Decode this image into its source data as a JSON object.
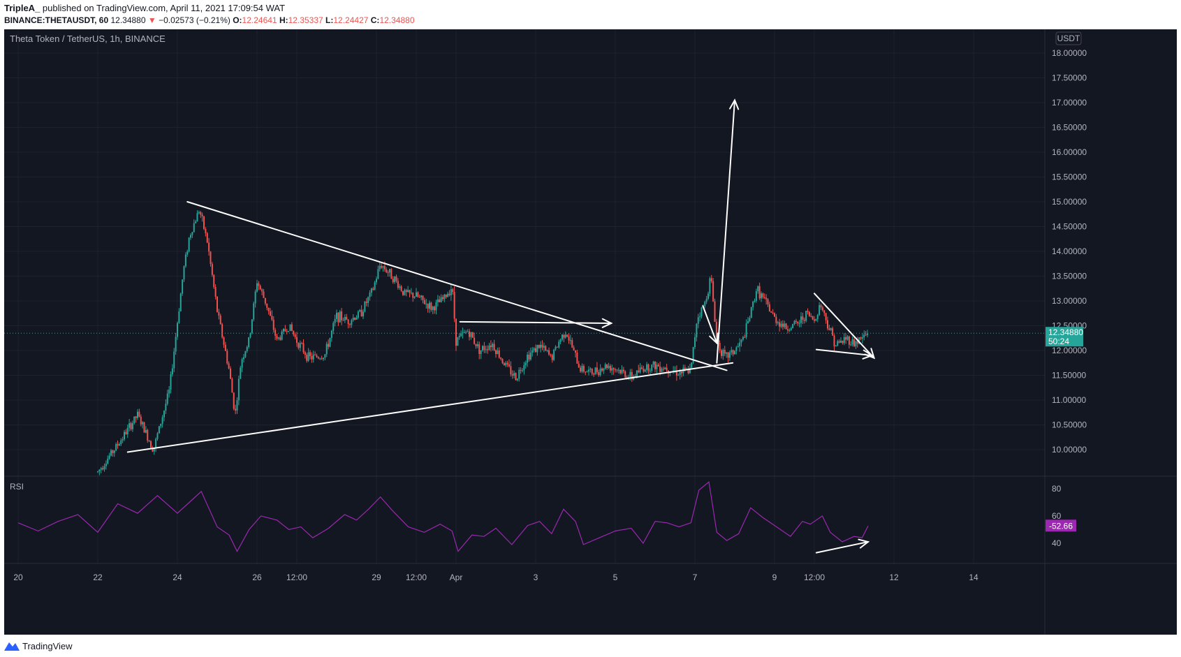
{
  "header": {
    "author": "TripleA_",
    "published": "published on TradingView.com, April 11, 2021 17:09:54 WAT",
    "symbol": "BINANCE:THETAUSDT, 60",
    "last": "12.34880",
    "change": "−0.02573 (−0.21%)",
    "o_label": "O:",
    "o_value": "12.24641",
    "h_label": "H:",
    "h_value": "12.35337",
    "l_label": "L:",
    "l_value": "12.24427",
    "c_label": "C:",
    "c_value": "12.34880"
  },
  "chart_title": "Theta Token / TetherUS, 1h, BINANCE",
  "currency_button": "USDT",
  "footer": {
    "brand": "TradingView"
  },
  "colors": {
    "background": "#131722",
    "up": "#26a69a",
    "down": "#ef5350",
    "rsi": "#9c27b0",
    "drawings": "#ffffff",
    "price_tag": "#26a69a"
  },
  "chart_data": {
    "type": "candlestick",
    "interval": "1h",
    "y_axis": {
      "min": 9.5,
      "max": 18.1,
      "ticks": [
        "18.00000",
        "17.50000",
        "17.00000",
        "16.50000",
        "16.00000",
        "15.50000",
        "15.00000",
        "14.50000",
        "14.00000",
        "13.50000",
        "13.00000",
        "12.50000",
        "12.00000",
        "11.50000",
        "11.00000",
        "10.50000",
        "10.00000"
      ]
    },
    "x_axis": {
      "ticks": [
        "20",
        "22",
        "24",
        "26",
        "12:00",
        "29",
        "12:00",
        "Apr",
        "3",
        "5",
        "7",
        "9",
        "12:00",
        "12",
        "14"
      ]
    },
    "last_price": "12.34880",
    "countdown": "50:24",
    "price_path": [
      [
        22.0,
        9.55
      ],
      [
        22.5,
        10.1
      ],
      [
        23.0,
        10.7
      ],
      [
        23.4,
        10.0
      ],
      [
        23.8,
        11.2
      ],
      [
        24.15,
        13.6
      ],
      [
        24.3,
        14.3
      ],
      [
        24.55,
        14.85
      ],
      [
        24.75,
        14.2
      ],
      [
        25.0,
        12.8
      ],
      [
        25.3,
        11.6
      ],
      [
        25.45,
        10.7
      ],
      [
        25.6,
        11.8
      ],
      [
        25.8,
        12.2
      ],
      [
        26.0,
        13.4
      ],
      [
        26.25,
        12.9
      ],
      [
        26.5,
        12.2
      ],
      [
        26.8,
        12.5
      ],
      [
        27.0,
        12.2
      ],
      [
        27.3,
        11.85
      ],
      [
        27.7,
        11.9
      ],
      [
        28.0,
        12.7
      ],
      [
        28.3,
        12.6
      ],
      [
        28.6,
        12.75
      ],
      [
        28.9,
        13.2
      ],
      [
        29.1,
        13.75
      ],
      [
        29.4,
        13.5
      ],
      [
        29.7,
        13.15
      ],
      [
        30.0,
        13.1
      ],
      [
        30.4,
        12.85
      ],
      [
        30.7,
        13.05
      ],
      [
        30.9,
        13.3
      ],
      [
        31.0,
        12.2
      ],
      [
        31.3,
        12.4
      ],
      [
        31.6,
        12.0
      ],
      [
        31.9,
        12.15
      ],
      [
        32.2,
        11.75
      ],
      [
        32.5,
        11.45
      ],
      [
        32.8,
        11.9
      ],
      [
        33.1,
        12.1
      ],
      [
        33.4,
        11.85
      ],
      [
        33.6,
        12.2
      ],
      [
        33.75,
        12.4
      ],
      [
        33.9,
        12.1
      ],
      [
        34.1,
        11.65
      ],
      [
        34.4,
        11.55
      ],
      [
        34.8,
        11.7
      ],
      [
        35.1,
        11.6
      ],
      [
        35.4,
        11.45
      ],
      [
        35.7,
        11.65
      ],
      [
        36.0,
        11.7
      ],
      [
        36.3,
        11.65
      ],
      [
        36.6,
        11.55
      ],
      [
        36.9,
        11.6
      ],
      [
        37.05,
        12.65
      ],
      [
        37.25,
        12.95
      ],
      [
        37.4,
        13.5
      ],
      [
        37.55,
        12.2
      ],
      [
        37.75,
        11.85
      ],
      [
        38.0,
        12.0
      ],
      [
        38.2,
        12.2
      ],
      [
        38.4,
        12.75
      ],
      [
        38.55,
        13.25
      ],
      [
        38.75,
        13.0
      ],
      [
        39.0,
        12.65
      ],
      [
        39.3,
        12.45
      ],
      [
        39.6,
        12.55
      ],
      [
        39.8,
        12.75
      ],
      [
        40.0,
        12.6
      ],
      [
        40.15,
        12.95
      ],
      [
        40.35,
        12.5
      ],
      [
        40.55,
        12.1
      ],
      [
        40.8,
        12.25
      ],
      [
        41.0,
        12.15
      ],
      [
        41.2,
        12.25
      ],
      [
        41.35,
        12.3488
      ]
    ],
    "rsi": {
      "label": "RSI",
      "value": "52.66",
      "ticks": [
        "80",
        "60",
        "40"
      ],
      "min": 20,
      "max": 100,
      "path": [
        [
          20.0,
          55
        ],
        [
          20.5,
          49
        ],
        [
          21.0,
          56
        ],
        [
          21.5,
          61
        ],
        [
          22.0,
          48
        ],
        [
          22.5,
          69
        ],
        [
          23.0,
          62
        ],
        [
          23.5,
          75
        ],
        [
          24.0,
          62
        ],
        [
          24.3,
          70
        ],
        [
          24.6,
          78
        ],
        [
          25.0,
          52
        ],
        [
          25.3,
          46
        ],
        [
          25.5,
          34
        ],
        [
          25.8,
          50
        ],
        [
          26.1,
          60
        ],
        [
          26.5,
          57
        ],
        [
          26.8,
          50
        ],
        [
          27.1,
          52
        ],
        [
          27.4,
          44
        ],
        [
          27.8,
          51
        ],
        [
          28.2,
          61
        ],
        [
          28.5,
          57
        ],
        [
          28.8,
          65
        ],
        [
          29.1,
          74
        ],
        [
          29.4,
          64
        ],
        [
          29.8,
          52
        ],
        [
          30.2,
          48
        ],
        [
          30.6,
          54
        ],
        [
          30.9,
          49
        ],
        [
          31.05,
          34
        ],
        [
          31.4,
          46
        ],
        [
          31.7,
          45
        ],
        [
          32.0,
          51
        ],
        [
          32.4,
          39
        ],
        [
          32.8,
          53
        ],
        [
          33.1,
          56
        ],
        [
          33.4,
          47
        ],
        [
          33.7,
          65
        ],
        [
          34.0,
          56
        ],
        [
          34.2,
          39
        ],
        [
          34.6,
          44
        ],
        [
          35.0,
          49
        ],
        [
          35.4,
          51
        ],
        [
          35.7,
          40
        ],
        [
          36.0,
          56
        ],
        [
          36.3,
          55
        ],
        [
          36.6,
          52
        ],
        [
          36.9,
          55
        ],
        [
          37.1,
          79
        ],
        [
          37.35,
          85
        ],
        [
          37.55,
          48
        ],
        [
          37.8,
          42
        ],
        [
          38.1,
          47
        ],
        [
          38.4,
          66
        ],
        [
          38.7,
          59
        ],
        [
          39.0,
          53
        ],
        [
          39.4,
          45
        ],
        [
          39.7,
          56
        ],
        [
          39.9,
          54
        ],
        [
          40.2,
          60
        ],
        [
          40.4,
          48
        ],
        [
          40.7,
          41
        ],
        [
          41.0,
          45
        ],
        [
          41.2,
          44
        ],
        [
          41.35,
          52.66
        ]
      ]
    },
    "drawings": [
      {
        "type": "line",
        "from": [
          24.25,
          15.0
        ],
        "to": [
          37.8,
          11.6
        ]
      },
      {
        "type": "line",
        "from": [
          22.75,
          9.95
        ],
        "to": [
          37.95,
          11.75
        ]
      },
      {
        "type": "arrow",
        "from": [
          31.1,
          12.58
        ],
        "to": [
          34.9,
          12.55
        ]
      },
      {
        "type": "arrow",
        "from": [
          37.55,
          11.75
        ],
        "to": [
          38.0,
          17.05
        ]
      },
      {
        "type": "arrow",
        "from": [
          37.2,
          12.9
        ],
        "to": [
          37.55,
          12.15
        ]
      },
      {
        "type": "arrow",
        "from": [
          40.0,
          13.15
        ],
        "to": [
          41.5,
          11.85
        ]
      },
      {
        "type": "arrow",
        "from": [
          40.05,
          12.02
        ],
        "to": [
          41.45,
          11.9
        ]
      },
      {
        "type": "arrow",
        "rsi": true,
        "from": [
          40.05,
          33
        ],
        "to": [
          41.35,
          41
        ]
      }
    ]
  }
}
